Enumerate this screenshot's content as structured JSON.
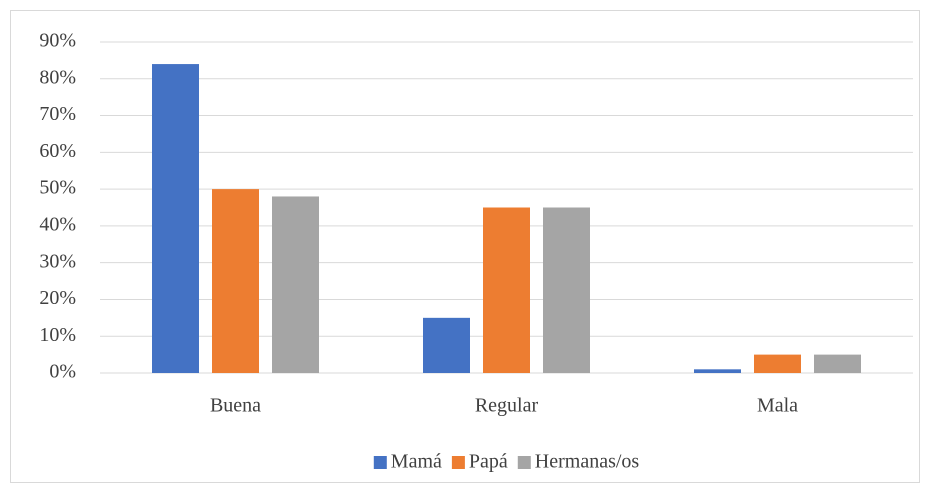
{
  "chart_data": {
    "type": "bar",
    "categories": [
      "Buena",
      "Regular",
      "Mala"
    ],
    "series": [
      {
        "name": "Mamá",
        "color": "#4472c4",
        "values": [
          84,
          15,
          1
        ]
      },
      {
        "name": "Papá",
        "color": "#ed7d31",
        "values": [
          50,
          45,
          5
        ]
      },
      {
        "name": "Hermanas/os",
        "color": "#a5a5a5",
        "values": [
          48,
          45,
          5
        ]
      }
    ],
    "ylim": [
      0,
      90
    ],
    "yticks": [
      {
        "value": 0,
        "label": "0%"
      },
      {
        "value": 10,
        "label": "10%"
      },
      {
        "value": 20,
        "label": "20%"
      },
      {
        "value": 30,
        "label": "30%"
      },
      {
        "value": 40,
        "label": "40%"
      },
      {
        "value": 50,
        "label": "50%"
      },
      {
        "value": 60,
        "label": "60%"
      },
      {
        "value": 70,
        "label": "70%"
      },
      {
        "value": 80,
        "label": "80%"
      },
      {
        "value": 90,
        "label": "90%"
      }
    ],
    "grid": true,
    "legend": "bottom"
  }
}
